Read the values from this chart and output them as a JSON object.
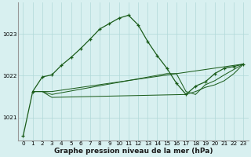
{
  "xlabel": "Graphe pression niveau de la mer (hPa)",
  "background_color": "#d8f0f0",
  "grid_color": "#b0d8d8",
  "line_color": "#1a5c1a",
  "xlim": [
    -0.5,
    23.5
  ],
  "ylim": [
    1020.45,
    1023.75
  ],
  "yticks": [
    1021,
    1022,
    1023
  ],
  "xticks": [
    0,
    1,
    2,
    3,
    4,
    5,
    6,
    7,
    8,
    9,
    10,
    11,
    12,
    13,
    14,
    15,
    16,
    17,
    18,
    19,
    20,
    21,
    22,
    23
  ],
  "line1_x": [
    0,
    1,
    2,
    3,
    4,
    5,
    6,
    7,
    8,
    9,
    10,
    11,
    12,
    13,
    14,
    15,
    16,
    17,
    18,
    19,
    20,
    21,
    22,
    23
  ],
  "line1_y": [
    1020.55,
    1021.62,
    1021.97,
    1022.02,
    1022.25,
    1022.44,
    1022.65,
    1022.88,
    1023.12,
    1023.25,
    1023.38,
    1023.45,
    1023.22,
    1022.82,
    1022.48,
    1022.18,
    1021.82,
    1021.55,
    1021.75,
    1021.85,
    1022.05,
    1022.18,
    1022.22,
    1022.28
  ],
  "line2_x": [
    1,
    2,
    3,
    23
  ],
  "line2_y": [
    1021.62,
    1021.62,
    1021.62,
    1022.28
  ],
  "line3_x": [
    1,
    2,
    3,
    17,
    18,
    19,
    20,
    21,
    22,
    23
  ],
  "line3_y": [
    1021.62,
    1021.62,
    1021.48,
    1021.55,
    1021.62,
    1021.72,
    1021.78,
    1021.88,
    1022.05,
    1022.28
  ],
  "line4_x": [
    1,
    2,
    3,
    15,
    16,
    17,
    18,
    19,
    20,
    21,
    22,
    23
  ],
  "line4_y": [
    1021.62,
    1021.62,
    1021.55,
    1022.05,
    1022.05,
    1021.62,
    1021.55,
    1021.78,
    1021.88,
    1022.02,
    1022.15,
    1022.28
  ],
  "marker": "+",
  "markersize": 3.5,
  "linewidth": 0.9,
  "tick_fontsize": 5.2,
  "label_fontsize": 6.5
}
